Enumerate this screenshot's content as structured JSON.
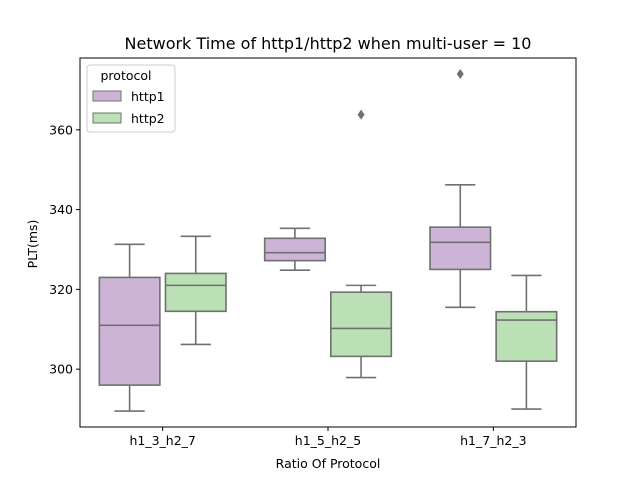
{
  "chart_data": {
    "type": "box",
    "title": "Network Time of http1/http2 when multi-user = 10",
    "xlabel": "Ratio Of Protocol",
    "ylabel": "PLT(ms)",
    "ylim": [
      285.5,
      378
    ],
    "yticks": [
      300,
      320,
      340,
      360
    ],
    "categories": [
      "h1_3_h2_7",
      "h1_5_h2_5",
      "h1_7_h2_3"
    ],
    "legend": {
      "title": "protocol",
      "position": "upper-left"
    },
    "series": [
      {
        "name": "http1",
        "color": "#cbb4d6",
        "boxes": [
          {
            "whisker_low": 289.5,
            "q1": 296,
            "median": 311,
            "q3": 323,
            "whisker_high": 331.3,
            "outliers": []
          },
          {
            "whisker_low": 324.8,
            "q1": 327.2,
            "median": 329.2,
            "q3": 332.8,
            "whisker_high": 335.3,
            "outliers": []
          },
          {
            "whisker_low": 315.5,
            "q1": 325,
            "median": 331.8,
            "q3": 335.6,
            "whisker_high": 346.2,
            "outliers": [
              374
            ]
          }
        ]
      },
      {
        "name": "http2",
        "color": "#bce0b6",
        "boxes": [
          {
            "whisker_low": 306.2,
            "q1": 314.5,
            "median": 321,
            "q3": 324,
            "whisker_high": 333.3,
            "outliers": []
          },
          {
            "whisker_low": 297.9,
            "q1": 303.2,
            "median": 310.2,
            "q3": 319.3,
            "whisker_high": 321,
            "outliers": [
              363.8
            ]
          },
          {
            "whisker_low": 290,
            "q1": 302,
            "median": 312.3,
            "q3": 314.4,
            "whisker_high": 323.5,
            "outliers": []
          }
        ]
      }
    ],
    "style": {
      "line_color": "#707070",
      "frame_color": "#000000"
    }
  }
}
